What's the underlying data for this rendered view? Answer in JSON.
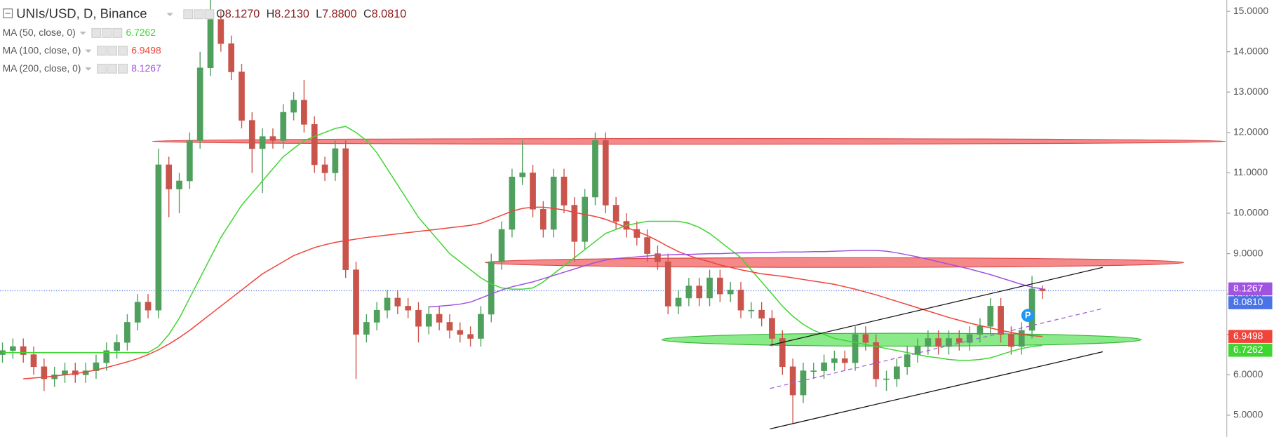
{
  "chart_data": {
    "type": "candlestick",
    "title": "UNIs/USD, D, Binance",
    "ohlc_legend": [
      {
        "key": "O",
        "label": "8.1270"
      },
      {
        "key": "H",
        "label": "8.2130"
      },
      {
        "key": "L",
        "label": "7.8800"
      },
      {
        "key": "C",
        "label": "8.0810"
      }
    ],
    "legend_value_color": "#8b1a1a",
    "up_color": "#4f9f5d",
    "down_color": "#c9544b",
    "candles": {
      "open": [
        6.5,
        6.6,
        6.7,
        6.5,
        6.2,
        5.9,
        6.0,
        6.1,
        6.0,
        6.1,
        6.3,
        6.6,
        6.8,
        7.3,
        7.8,
        7.6,
        11.2,
        10.6,
        10.8,
        11.8,
        13.6,
        14.8,
        14.2,
        13.5,
        12.3,
        11.6,
        11.9,
        11.8,
        12.5,
        12.8,
        12.2,
        11.2,
        11.0,
        11.6,
        8.6,
        7.0,
        7.3,
        7.6,
        7.9,
        7.7,
        7.6,
        7.2,
        7.5,
        7.3,
        7.1,
        7.0,
        6.9,
        7.5,
        8.8,
        9.6,
        10.9,
        11.0,
        10.1,
        9.6,
        10.9,
        10.2,
        9.3,
        10.4,
        11.8,
        10.2,
        9.8,
        9.6,
        9.4,
        9.0,
        8.8,
        7.7,
        7.9,
        8.2,
        7.9,
        8.4,
        8.0,
        8.1,
        7.6,
        7.6,
        7.4,
        6.9,
        6.2,
        5.5,
        6.1,
        6.1,
        6.3,
        6.4,
        6.3,
        7.0,
        6.8,
        5.9,
        5.9,
        6.2,
        6.5,
        6.7,
        6.9,
        6.7,
        6.9,
        6.8,
        7.0,
        7.2,
        7.7,
        7.0,
        6.7,
        7.1,
        8.127
      ],
      "high": [
        6.8,
        6.9,
        6.9,
        6.7,
        6.4,
        6.2,
        6.3,
        6.3,
        6.3,
        6.5,
        6.8,
        7.0,
        7.5,
        8.0,
        8.0,
        11.6,
        11.4,
        11.0,
        12.0,
        14.0,
        15.3,
        15.0,
        14.4,
        13.7,
        12.5,
        12.1,
        12.1,
        12.7,
        13.0,
        13.3,
        12.4,
        11.4,
        11.8,
        11.8,
        8.8,
        7.5,
        7.8,
        8.1,
        8.1,
        7.9,
        7.8,
        7.7,
        7.7,
        7.5,
        7.3,
        7.2,
        7.7,
        9.0,
        9.8,
        11.1,
        11.8,
        11.2,
        10.3,
        11.1,
        11.1,
        10.4,
        10.6,
        12.0,
        12.0,
        10.4,
        10.0,
        9.8,
        9.6,
        9.2,
        9.0,
        8.1,
        8.4,
        8.4,
        8.6,
        8.6,
        8.3,
        8.3,
        7.8,
        7.8,
        7.6,
        7.1,
        6.4,
        6.3,
        6.3,
        6.5,
        6.6,
        6.6,
        7.2,
        7.2,
        7.0,
        6.1,
        6.4,
        6.7,
        6.9,
        7.1,
        7.1,
        7.1,
        7.1,
        7.2,
        7.4,
        7.9,
        7.9,
        7.2,
        7.3,
        8.45,
        8.213
      ],
      "low": [
        6.3,
        6.4,
        6.3,
        6.0,
        5.6,
        5.7,
        5.8,
        5.8,
        5.8,
        5.9,
        6.1,
        6.4,
        6.6,
        7.1,
        7.4,
        7.4,
        9.9,
        10.0,
        10.6,
        11.6,
        13.4,
        14.0,
        13.3,
        12.1,
        11.0,
        10.5,
        11.6,
        11.6,
        12.3,
        12.0,
        11.0,
        10.8,
        10.8,
        8.4,
        5.9,
        6.8,
        7.1,
        7.4,
        7.5,
        7.4,
        6.8,
        7.0,
        7.1,
        6.9,
        6.8,
        6.7,
        6.7,
        7.3,
        8.6,
        9.4,
        10.7,
        9.9,
        9.4,
        9.4,
        10.0,
        8.8,
        9.1,
        10.2,
        10.0,
        9.6,
        9.4,
        9.2,
        8.8,
        8.6,
        7.5,
        7.5,
        7.7,
        7.7,
        7.7,
        7.8,
        7.8,
        7.4,
        7.4,
        7.2,
        6.7,
        6.0,
        4.8,
        5.3,
        5.9,
        5.9,
        6.1,
        6.1,
        6.1,
        6.6,
        5.7,
        5.6,
        5.7,
        6.0,
        6.3,
        6.5,
        6.5,
        6.5,
        6.6,
        6.6,
        6.8,
        7.0,
        6.8,
        6.5,
        6.5,
        6.9,
        7.88
      ],
      "close": [
        6.6,
        6.7,
        6.5,
        6.2,
        5.9,
        6.0,
        6.1,
        6.0,
        6.1,
        6.3,
        6.6,
        6.8,
        7.3,
        7.8,
        7.6,
        11.2,
        10.6,
        10.8,
        11.8,
        13.6,
        14.8,
        14.2,
        13.5,
        12.3,
        11.6,
        11.9,
        11.8,
        12.5,
        12.8,
        12.2,
        11.2,
        11.0,
        11.6,
        8.6,
        7.0,
        7.3,
        7.6,
        7.9,
        7.7,
        7.6,
        7.2,
        7.5,
        7.3,
        7.1,
        7.0,
        6.9,
        7.5,
        8.8,
        9.6,
        10.9,
        11.0,
        10.1,
        9.6,
        10.9,
        10.2,
        9.3,
        10.4,
        11.8,
        10.2,
        9.8,
        9.6,
        9.4,
        9.0,
        8.8,
        7.7,
        7.9,
        8.2,
        7.9,
        8.4,
        8.0,
        8.1,
        7.6,
        7.6,
        7.4,
        6.9,
        6.2,
        5.5,
        6.1,
        6.1,
        6.3,
        6.4,
        6.3,
        7.0,
        6.8,
        5.9,
        5.9,
        6.2,
        6.5,
        6.7,
        6.9,
        6.7,
        6.9,
        6.8,
        7.0,
        7.2,
        7.7,
        7.0,
        6.7,
        7.1,
        8.127,
        8.081
      ],
      "close_label": "8.0810",
      "close_color": "#4a73e8"
    },
    "series": [
      {
        "name": "MA (50, close, 0)",
        "color": "#3fd631",
        "value_label": "6.7262",
        "values": [
          6.55,
          6.55,
          6.55,
          6.55,
          6.55,
          6.55,
          6.55,
          6.55,
          6.55,
          6.55,
          6.55,
          6.55,
          6.55,
          6.55,
          6.55,
          6.7,
          7.0,
          7.4,
          7.9,
          8.4,
          8.9,
          9.4,
          9.8,
          10.2,
          10.5,
          10.8,
          11.1,
          11.4,
          11.6,
          11.8,
          11.9,
          12.0,
          12.1,
          12.15,
          12.0,
          11.8,
          11.5,
          11.1,
          10.7,
          10.3,
          9.9,
          9.6,
          9.3,
          9.0,
          8.8,
          8.6,
          8.4,
          8.25,
          8.15,
          8.12,
          8.12,
          8.15,
          8.3,
          8.5,
          8.7,
          8.9,
          9.1,
          9.3,
          9.5,
          9.6,
          9.7,
          9.75,
          9.8,
          9.8,
          9.8,
          9.8,
          9.75,
          9.65,
          9.5,
          9.3,
          9.1,
          8.9,
          8.6,
          8.3,
          8.0,
          7.7,
          7.45,
          7.25,
          7.1,
          7.0,
          6.9,
          6.85,
          6.8,
          6.75,
          6.7,
          6.65,
          6.6,
          6.55,
          6.5,
          6.45,
          6.42,
          6.38,
          6.36,
          6.36,
          6.38,
          6.42,
          6.5,
          6.58,
          6.65,
          6.7,
          6.7262
        ]
      },
      {
        "name": "MA (100, close, 0)",
        "color": "#f0433a",
        "value_label": "6.9498",
        "values": [
          null,
          null,
          5.9,
          5.92,
          5.94,
          5.97,
          6.0,
          6.03,
          6.07,
          6.12,
          6.18,
          6.25,
          6.32,
          6.4,
          6.5,
          6.62,
          6.76,
          6.92,
          7.1,
          7.3,
          7.5,
          7.7,
          7.9,
          8.1,
          8.3,
          8.5,
          8.65,
          8.8,
          8.95,
          9.05,
          9.15,
          9.22,
          9.28,
          9.32,
          9.36,
          9.4,
          9.43,
          9.46,
          9.49,
          9.52,
          9.55,
          9.58,
          9.61,
          9.64,
          9.67,
          9.7,
          9.75,
          9.85,
          9.95,
          10.05,
          10.12,
          10.15,
          10.15,
          10.12,
          10.08,
          10.02,
          9.97,
          9.92,
          9.85,
          9.75,
          9.65,
          9.55,
          9.45,
          9.32,
          9.18,
          9.05,
          8.95,
          8.87,
          8.8,
          8.72,
          8.66,
          8.6,
          8.55,
          8.5,
          8.47,
          8.44,
          8.4,
          8.36,
          8.32,
          8.28,
          8.24,
          8.18,
          8.12,
          8.05,
          7.98,
          7.9,
          7.82,
          7.74,
          7.66,
          7.58,
          7.5,
          7.42,
          7.35,
          7.28,
          7.22,
          7.16,
          7.1,
          7.05,
          7.0,
          6.97,
          6.9498
        ]
      },
      {
        "name": "MA (200, close, 0)",
        "color": "#a052e0",
        "value_label": "8.1267",
        "values": [
          null,
          null,
          null,
          null,
          null,
          null,
          null,
          null,
          null,
          null,
          null,
          null,
          null,
          null,
          null,
          null,
          null,
          null,
          null,
          null,
          null,
          null,
          null,
          null,
          null,
          null,
          null,
          null,
          null,
          null,
          null,
          null,
          null,
          null,
          null,
          null,
          null,
          null,
          null,
          null,
          null,
          7.68,
          7.7,
          7.72,
          7.75,
          7.8,
          7.9,
          8.0,
          8.1,
          8.18,
          8.24,
          8.3,
          8.38,
          8.46,
          8.54,
          8.62,
          8.7,
          8.78,
          8.84,
          8.88,
          8.9,
          8.92,
          8.94,
          8.96,
          8.97,
          8.98,
          8.98,
          8.99,
          9.0,
          9.0,
          9.01,
          9.02,
          9.02,
          9.03,
          9.03,
          9.04,
          9.04,
          9.04,
          9.05,
          9.05,
          9.06,
          9.07,
          9.08,
          9.08,
          9.08,
          9.06,
          9.02,
          8.97,
          8.92,
          8.86,
          8.8,
          8.74,
          8.68,
          8.62,
          8.55,
          8.48,
          8.4,
          8.32,
          8.24,
          8.17,
          8.1267
        ]
      }
    ],
    "zones": [
      {
        "x": [
          14.4,
          117.6
        ],
        "y": 11.78,
        "height": 0.14,
        "color": "#f47b7b",
        "stroke": "#d94a4a"
      },
      {
        "x": [
          46.4,
          113.6
        ],
        "y": 8.78,
        "height": 0.24,
        "color": "#f47b7b",
        "stroke": "#d94a4a"
      },
      {
        "x": [
          63.4,
          109.5
        ],
        "y": 6.87,
        "height": 0.32,
        "color": "#7de87d",
        "stroke": "#34b534"
      }
    ],
    "trendlines": [
      {
        "x": [
          73.8,
          105.8
        ],
        "y": [
          4.66,
          6.57
        ],
        "color": "#111111",
        "dashed": false
      },
      {
        "x": [
          73.8,
          105.8
        ],
        "y": [
          6.73,
          8.66
        ],
        "color": "#111111",
        "dashed": false
      },
      {
        "x": [
          73.8,
          105.8
        ],
        "y": [
          5.66,
          7.64
        ],
        "color": "#9c5fd6",
        "dashed": true
      }
    ],
    "marker": {
      "text": "P",
      "x": 98.6,
      "y": 7.47,
      "color": "#2196f3"
    },
    "xlim": [
      -0.23,
      117.73
    ],
    "ylim": [
      4.46,
      15.28
    ],
    "yticks": [
      {
        "value": 5,
        "label": "5.0000"
      },
      {
        "value": 6,
        "label": "6.0000"
      },
      {
        "value": 7,
        "label": "7.0000"
      },
      {
        "value": 8,
        "label": "8.0000"
      },
      {
        "value": 9,
        "label": "9.0000"
      },
      {
        "value": 10,
        "label": "10.0000"
      },
      {
        "value": 11,
        "label": "11.0000"
      },
      {
        "value": 12,
        "label": "12.0000"
      },
      {
        "value": 13,
        "label": "13.0000"
      },
      {
        "value": 14,
        "label": "14.0000"
      },
      {
        "value": 15,
        "label": "15.0000"
      }
    ],
    "grid": false
  }
}
